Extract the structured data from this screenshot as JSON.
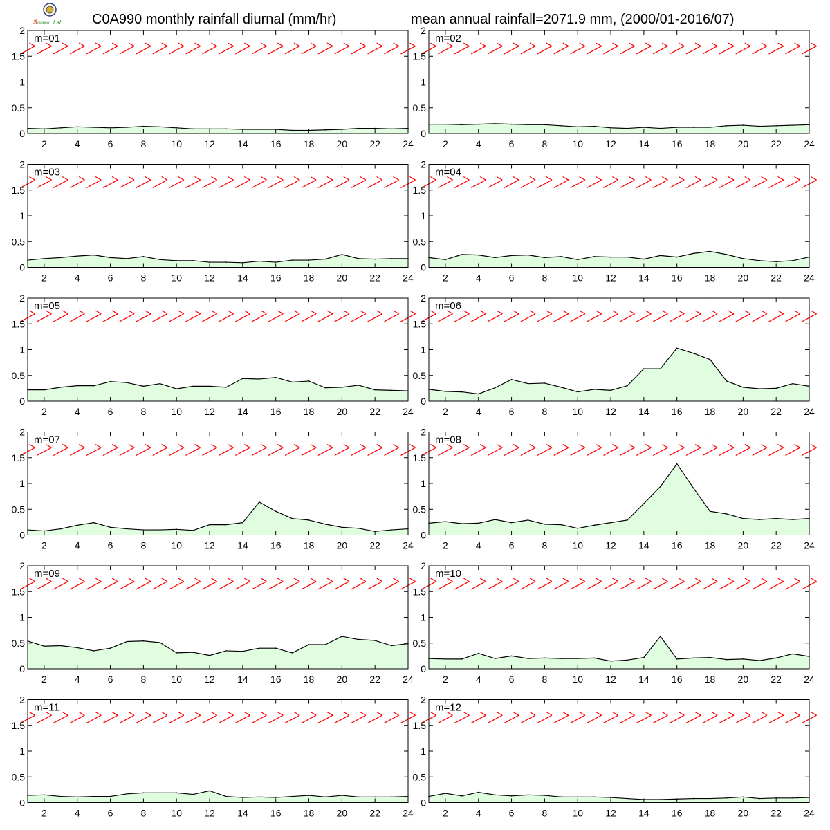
{
  "title_left": "C0A990 monthly rainfall diurnal (mm/hr)",
  "title_right": "mean annual rainfall=2071.9 mm, (2000/01-2016/07)",
  "logo_text": "Lab",
  "colors": {
    "fill": "#e0fde0",
    "line": "#000000",
    "wind": "#ff0000"
  },
  "chart_data": [
    {
      "type": "area",
      "label": "m=01",
      "x": [
        1,
        2,
        3,
        4,
        5,
        6,
        7,
        8,
        9,
        10,
        11,
        12,
        13,
        14,
        15,
        16,
        17,
        18,
        19,
        20,
        21,
        22,
        23,
        24
      ],
      "values": [
        0.1,
        0.09,
        0.11,
        0.13,
        0.12,
        0.11,
        0.12,
        0.14,
        0.13,
        0.11,
        0.09,
        0.09,
        0.09,
        0.08,
        0.08,
        0.08,
        0.06,
        0.06,
        0.07,
        0.08,
        0.1,
        0.1,
        0.09,
        0.1
      ],
      "ylim": [
        0,
        2
      ],
      "yticks": [
        "0",
        "0.5",
        "1",
        "1.5",
        "2"
      ],
      "xticks": [
        "2",
        "4",
        "6",
        "8",
        "10",
        "12",
        "14",
        "16",
        "18",
        "20",
        "22",
        "24"
      ]
    },
    {
      "type": "area",
      "label": "m=02",
      "x": [
        1,
        2,
        3,
        4,
        5,
        6,
        7,
        8,
        9,
        10,
        11,
        12,
        13,
        14,
        15,
        16,
        17,
        18,
        19,
        20,
        21,
        22,
        23,
        24
      ],
      "values": [
        0.18,
        0.18,
        0.17,
        0.18,
        0.19,
        0.18,
        0.17,
        0.17,
        0.15,
        0.13,
        0.14,
        0.11,
        0.1,
        0.12,
        0.1,
        0.12,
        0.12,
        0.12,
        0.15,
        0.16,
        0.14,
        0.15,
        0.16,
        0.17
      ],
      "ylim": [
        0,
        2
      ],
      "yticks": [
        "0",
        "0.5",
        "1",
        "1.5",
        "2"
      ],
      "xticks": [
        "2",
        "4",
        "6",
        "8",
        "10",
        "12",
        "14",
        "16",
        "18",
        "20",
        "22",
        "24"
      ]
    },
    {
      "type": "area",
      "label": "m=03",
      "x": [
        1,
        2,
        3,
        4,
        5,
        6,
        7,
        8,
        9,
        10,
        11,
        12,
        13,
        14,
        15,
        16,
        17,
        18,
        19,
        20,
        21,
        22,
        23,
        24
      ],
      "values": [
        0.14,
        0.17,
        0.19,
        0.22,
        0.24,
        0.19,
        0.17,
        0.21,
        0.15,
        0.13,
        0.13,
        0.1,
        0.1,
        0.09,
        0.12,
        0.1,
        0.14,
        0.14,
        0.16,
        0.25,
        0.17,
        0.16,
        0.17,
        0.17
      ],
      "ylim": [
        0,
        2
      ],
      "yticks": [
        "0",
        "0.5",
        "1",
        "1.5",
        "2"
      ],
      "xticks": [
        "2",
        "4",
        "6",
        "8",
        "10",
        "12",
        "14",
        "16",
        "18",
        "20",
        "22",
        "24"
      ]
    },
    {
      "type": "area",
      "label": "m=04",
      "x": [
        1,
        2,
        3,
        4,
        5,
        6,
        7,
        8,
        9,
        10,
        11,
        12,
        13,
        14,
        15,
        16,
        17,
        18,
        19,
        20,
        21,
        22,
        23,
        24
      ],
      "values": [
        0.19,
        0.15,
        0.25,
        0.24,
        0.19,
        0.23,
        0.24,
        0.19,
        0.21,
        0.15,
        0.21,
        0.2,
        0.2,
        0.16,
        0.23,
        0.2,
        0.27,
        0.31,
        0.25,
        0.17,
        0.13,
        0.11,
        0.13,
        0.2
      ],
      "ylim": [
        0,
        2
      ],
      "yticks": [
        "0",
        "0.5",
        "1",
        "1.5",
        "2"
      ],
      "xticks": [
        "2",
        "4",
        "6",
        "8",
        "10",
        "12",
        "14",
        "16",
        "18",
        "20",
        "22",
        "24"
      ]
    },
    {
      "type": "area",
      "label": "m=05",
      "x": [
        1,
        2,
        3,
        4,
        5,
        6,
        7,
        8,
        9,
        10,
        11,
        12,
        13,
        14,
        15,
        16,
        17,
        18,
        19,
        20,
        21,
        22,
        23,
        24
      ],
      "values": [
        0.22,
        0.22,
        0.27,
        0.3,
        0.3,
        0.38,
        0.36,
        0.29,
        0.34,
        0.24,
        0.29,
        0.29,
        0.27,
        0.44,
        0.43,
        0.46,
        0.37,
        0.39,
        0.26,
        0.27,
        0.31,
        0.22,
        0.21,
        0.2
      ],
      "ylim": [
        0,
        2
      ],
      "yticks": [
        "0",
        "0.5",
        "1",
        "1.5",
        "2"
      ],
      "xticks": [
        "2",
        "4",
        "6",
        "8",
        "10",
        "12",
        "14",
        "16",
        "18",
        "20",
        "22",
        "24"
      ]
    },
    {
      "type": "area",
      "label": "m=06",
      "x": [
        1,
        2,
        3,
        4,
        5,
        6,
        7,
        8,
        9,
        10,
        11,
        12,
        13,
        14,
        15,
        16,
        17,
        18,
        19,
        20,
        21,
        22,
        23,
        24
      ],
      "values": [
        0.23,
        0.19,
        0.18,
        0.14,
        0.26,
        0.42,
        0.34,
        0.35,
        0.27,
        0.18,
        0.23,
        0.21,
        0.3,
        0.63,
        0.63,
        1.03,
        0.93,
        0.81,
        0.39,
        0.27,
        0.24,
        0.25,
        0.34,
        0.29
      ],
      "ylim": [
        0,
        2
      ],
      "yticks": [
        "0",
        "0.5",
        "1",
        "1.5",
        "2"
      ],
      "xticks": [
        "2",
        "4",
        "6",
        "8",
        "10",
        "12",
        "14",
        "16",
        "18",
        "20",
        "22",
        "24"
      ]
    },
    {
      "type": "area",
      "label": "m=07",
      "x": [
        1,
        2,
        3,
        4,
        5,
        6,
        7,
        8,
        9,
        10,
        11,
        12,
        13,
        14,
        15,
        16,
        17,
        18,
        19,
        20,
        21,
        22,
        23,
        24
      ],
      "values": [
        0.1,
        0.08,
        0.12,
        0.19,
        0.24,
        0.15,
        0.12,
        0.1,
        0.1,
        0.11,
        0.09,
        0.2,
        0.2,
        0.24,
        0.64,
        0.46,
        0.32,
        0.29,
        0.21,
        0.15,
        0.13,
        0.07,
        0.1,
        0.12
      ],
      "ylim": [
        0,
        2
      ],
      "yticks": [
        "0",
        "0.5",
        "1",
        "1.5",
        "2"
      ],
      "xticks": [
        "2",
        "4",
        "6",
        "8",
        "10",
        "12",
        "14",
        "16",
        "18",
        "20",
        "22",
        "24"
      ]
    },
    {
      "type": "area",
      "label": "m=08",
      "x": [
        1,
        2,
        3,
        4,
        5,
        6,
        7,
        8,
        9,
        10,
        11,
        12,
        13,
        14,
        15,
        16,
        17,
        18,
        19,
        20,
        21,
        22,
        23,
        24
      ],
      "values": [
        0.23,
        0.26,
        0.22,
        0.23,
        0.3,
        0.24,
        0.29,
        0.21,
        0.2,
        0.13,
        0.19,
        0.24,
        0.29,
        0.61,
        0.94,
        1.38,
        0.91,
        0.46,
        0.41,
        0.32,
        0.3,
        0.32,
        0.3,
        0.32
      ],
      "ylim": [
        0,
        2
      ],
      "yticks": [
        "0",
        "0.5",
        "1",
        "1.5",
        "2"
      ],
      "xticks": [
        "2",
        "4",
        "6",
        "8",
        "10",
        "12",
        "14",
        "16",
        "18",
        "20",
        "22",
        "24"
      ]
    },
    {
      "type": "area",
      "label": "m=09",
      "x": [
        1,
        2,
        3,
        4,
        5,
        6,
        7,
        8,
        9,
        10,
        11,
        12,
        13,
        14,
        15,
        16,
        17,
        18,
        19,
        20,
        21,
        22,
        23,
        24
      ],
      "values": [
        0.54,
        0.44,
        0.45,
        0.41,
        0.35,
        0.4,
        0.53,
        0.54,
        0.51,
        0.31,
        0.32,
        0.26,
        0.35,
        0.34,
        0.4,
        0.4,
        0.31,
        0.47,
        0.47,
        0.63,
        0.57,
        0.55,
        0.45,
        0.49
      ],
      "ylim": [
        0,
        2
      ],
      "yticks": [
        "0",
        "0.5",
        "1",
        "1.5",
        "2"
      ],
      "xticks": [
        "2",
        "4",
        "6",
        "8",
        "10",
        "12",
        "14",
        "16",
        "18",
        "20",
        "22",
        "24"
      ]
    },
    {
      "type": "area",
      "label": "m=10",
      "x": [
        1,
        2,
        3,
        4,
        5,
        6,
        7,
        8,
        9,
        10,
        11,
        12,
        13,
        14,
        15,
        16,
        17,
        18,
        19,
        20,
        21,
        22,
        23,
        24
      ],
      "values": [
        0.2,
        0.19,
        0.19,
        0.3,
        0.2,
        0.25,
        0.2,
        0.21,
        0.2,
        0.2,
        0.21,
        0.15,
        0.17,
        0.22,
        0.63,
        0.19,
        0.21,
        0.22,
        0.18,
        0.19,
        0.16,
        0.21,
        0.29,
        0.24
      ],
      "ylim": [
        0,
        2
      ],
      "yticks": [
        "0",
        "0.5",
        "1",
        "1.5",
        "2"
      ],
      "xticks": [
        "2",
        "4",
        "6",
        "8",
        "10",
        "12",
        "14",
        "16",
        "18",
        "20",
        "22",
        "24"
      ]
    },
    {
      "type": "area",
      "label": "m=11",
      "x": [
        1,
        2,
        3,
        4,
        5,
        6,
        7,
        8,
        9,
        10,
        11,
        12,
        13,
        14,
        15,
        16,
        17,
        18,
        19,
        20,
        21,
        22,
        23,
        24
      ],
      "values": [
        0.14,
        0.15,
        0.12,
        0.11,
        0.12,
        0.12,
        0.17,
        0.19,
        0.19,
        0.19,
        0.16,
        0.23,
        0.12,
        0.1,
        0.11,
        0.1,
        0.12,
        0.14,
        0.11,
        0.14,
        0.11,
        0.11,
        0.11,
        0.12
      ],
      "ylim": [
        0,
        2
      ],
      "yticks": [
        "0",
        "0.5",
        "1",
        "1.5",
        "2"
      ],
      "xticks": [
        "2",
        "4",
        "6",
        "8",
        "10",
        "12",
        "14",
        "16",
        "18",
        "20",
        "22",
        "24"
      ]
    },
    {
      "type": "area",
      "label": "m=12",
      "x": [
        1,
        2,
        3,
        4,
        5,
        6,
        7,
        8,
        9,
        10,
        11,
        12,
        13,
        14,
        15,
        16,
        17,
        18,
        19,
        20,
        21,
        22,
        23,
        24
      ],
      "values": [
        0.12,
        0.18,
        0.13,
        0.2,
        0.15,
        0.13,
        0.15,
        0.14,
        0.11,
        0.11,
        0.11,
        0.1,
        0.08,
        0.06,
        0.06,
        0.07,
        0.08,
        0.08,
        0.09,
        0.11,
        0.08,
        0.09,
        0.09,
        0.1
      ],
      "ylim": [
        0,
        2
      ],
      "yticks": [
        "0",
        "0.5",
        "1",
        "1.5",
        "2"
      ],
      "xticks": [
        "2",
        "4",
        "6",
        "8",
        "10",
        "12",
        "14",
        "16",
        "18",
        "20",
        "22",
        "24"
      ]
    }
  ]
}
